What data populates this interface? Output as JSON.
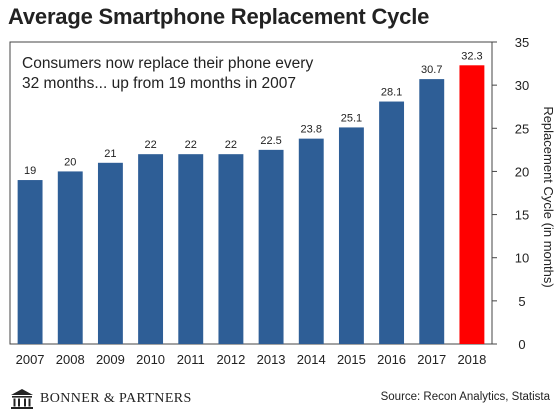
{
  "title": "Average Smartphone Replacement Cycle",
  "chart_data": {
    "type": "bar",
    "categories": [
      "2007",
      "2008",
      "2009",
      "2010",
      "2011",
      "2012",
      "2013",
      "2014",
      "2015",
      "2016",
      "2017",
      "2018"
    ],
    "values": [
      19,
      20,
      21,
      22,
      22,
      22,
      22.5,
      23.8,
      25.1,
      28.1,
      30.7,
      32.3
    ],
    "data_labels": [
      "19",
      "20",
      "21",
      "22",
      "22",
      "22",
      "22.5",
      "23.8",
      "25.1",
      "28.1",
      "30.7",
      "32.3"
    ],
    "ylabel": "Replacement Cycle (in months)",
    "ylim": [
      0,
      35
    ],
    "yticks": [
      0,
      5,
      10,
      15,
      20,
      25,
      30,
      35
    ],
    "y_axis_side": "right",
    "annotation": [
      "Consumers now replace their phone every",
      "32 months... up from 19 months in 2007"
    ],
    "bar_color": "#2e5e96",
    "highlight_index": 11,
    "highlight_color": "#ff0000",
    "grid": false
  },
  "branding": {
    "name": "BONNER & PARTNERS",
    "logo_icon": "building-columns-icon"
  },
  "source": "Source: Recon Analytics, Statista"
}
